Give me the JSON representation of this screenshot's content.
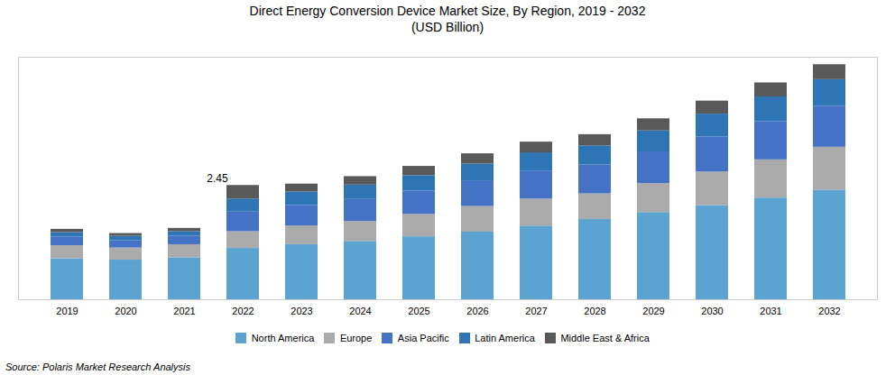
{
  "chart_data": {
    "type": "bar",
    "stacked": true,
    "title": "Direct Energy Conversion Device Market Size, By Region, 2019 - 2032",
    "subtitle": "(USD Billion)",
    "categories": [
      "2019",
      "2020",
      "2021",
      "2022",
      "2023",
      "2024",
      "2025",
      "2026",
      "2027",
      "2028",
      "2029",
      "2030",
      "2031",
      "2032"
    ],
    "series": [
      {
        "name": "North America",
        "color": "#5BA3D0",
        "values": [
          0.88,
          0.85,
          0.9,
          1.1,
          1.18,
          1.25,
          1.35,
          1.45,
          1.58,
          1.72,
          1.87,
          2.02,
          2.18,
          2.35
        ]
      },
      {
        "name": "Europe",
        "color": "#ABABAB",
        "values": [
          0.28,
          0.26,
          0.28,
          0.36,
          0.4,
          0.43,
          0.48,
          0.55,
          0.58,
          0.55,
          0.62,
          0.72,
          0.82,
          0.92
        ]
      },
      {
        "name": "Asia Pacific",
        "color": "#4472C4",
        "values": [
          0.18,
          0.16,
          0.18,
          0.42,
          0.44,
          0.47,
          0.5,
          0.55,
          0.6,
          0.62,
          0.68,
          0.75,
          0.82,
          0.88
        ]
      },
      {
        "name": "Latin America",
        "color": "#2E75B6",
        "values": [
          0.1,
          0.09,
          0.1,
          0.28,
          0.29,
          0.31,
          0.33,
          0.36,
          0.39,
          0.41,
          0.45,
          0.49,
          0.53,
          0.57
        ]
      },
      {
        "name": "Middle East & Africa",
        "color": "#595959",
        "values": [
          0.07,
          0.06,
          0.07,
          0.29,
          0.17,
          0.18,
          0.2,
          0.22,
          0.23,
          0.24,
          0.26,
          0.28,
          0.3,
          0.32
        ]
      }
    ],
    "annotations": [
      {
        "x": "2022",
        "y": 2.45,
        "text": "2.45"
      }
    ],
    "source": "Source: Polaris  Market Research Analysis",
    "ylim": [
      0,
      5.2
    ],
    "yticks": [],
    "tick_labels": "x",
    "grid": false,
    "legend": "bottom"
  }
}
